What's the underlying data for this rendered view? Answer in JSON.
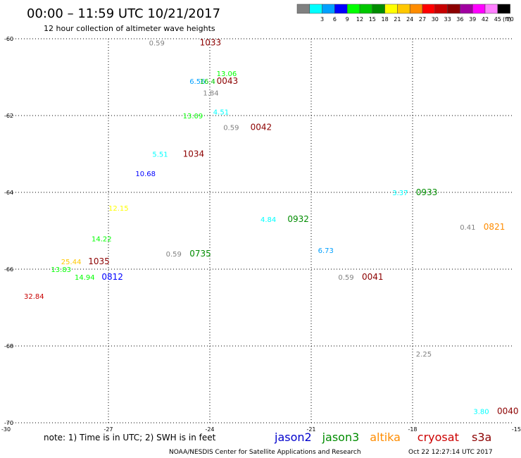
{
  "header": {
    "title": "00:00 – 11:59 UTC 10/21/2017",
    "subtitle": "12 hour collection of altimeter wave heights"
  },
  "legend": {
    "unit": "(ft)",
    "swatches": [
      {
        "color": "#808080",
        "label": ""
      },
      {
        "color": "#00ffff",
        "label": "3"
      },
      {
        "color": "#00a0ff",
        "label": "6"
      },
      {
        "color": "#0000ff",
        "label": "9"
      },
      {
        "color": "#00ff00",
        "label": "12"
      },
      {
        "color": "#00c800",
        "label": "15"
      },
      {
        "color": "#008c00",
        "label": "18"
      },
      {
        "color": "#ffff00",
        "label": "21"
      },
      {
        "color": "#ffc800",
        "label": "24"
      },
      {
        "color": "#ff8c00",
        "label": "27"
      },
      {
        "color": "#ff0000",
        "label": "30"
      },
      {
        "color": "#c80000",
        "label": "33"
      },
      {
        "color": "#8c0000",
        "label": "36"
      },
      {
        "color": "#a000a0",
        "label": "39"
      },
      {
        "color": "#ff00ff",
        "label": "42"
      },
      {
        "color": "#ff80ff",
        "label": "45"
      },
      {
        "color": "#000000",
        "label": "70"
      }
    ]
  },
  "axes": {
    "lon_ticks": [
      {
        "value": -30,
        "label": "-30"
      },
      {
        "value": -27,
        "label": "-27"
      },
      {
        "value": -24,
        "label": "-24"
      },
      {
        "value": -21,
        "label": "-21"
      },
      {
        "value": -18,
        "label": "-18"
      },
      {
        "value": -15,
        "label": "-15"
      }
    ],
    "lat_ticks": [
      {
        "value": -60,
        "label": "-60"
      },
      {
        "value": -62,
        "label": "-62"
      },
      {
        "value": -64,
        "label": "-64"
      },
      {
        "value": -66,
        "label": "-66"
      },
      {
        "value": -68,
        "label": "-68"
      },
      {
        "value": -70,
        "label": "-70"
      }
    ],
    "lon_range": [
      -30,
      -15
    ],
    "lat_range": [
      -60,
      -70
    ],
    "grid": "dotted"
  },
  "observations": [
    {
      "text": "0.59",
      "lon": -25.8,
      "lat": -60.1,
      "color": "#808080"
    },
    {
      "text": "1033",
      "lon": -24.3,
      "lat": -60.1,
      "color": "#8c0000",
      "time_label": true
    },
    {
      "text": "13.06",
      "lon": -23.8,
      "lat": -60.9,
      "color": "#00ff00"
    },
    {
      "text": "6.56",
      "lon": -24.6,
      "lat": -61.1,
      "color": "#00a0ff"
    },
    {
      "text": "16.4",
      "lon": -24.3,
      "lat": -61.1,
      "color": "#00c800"
    },
    {
      "text": "0043",
      "lon": -23.8,
      "lat": -61.1,
      "color": "#8c0000",
      "time_label": true
    },
    {
      "text": "1.84",
      "lon": -24.2,
      "lat": -61.4,
      "color": "#808080"
    },
    {
      "text": "4.51",
      "lon": -23.9,
      "lat": -61.9,
      "color": "#00ffff"
    },
    {
      "text": "13.09",
      "lon": -24.8,
      "lat": -62.0,
      "color": "#00ff00"
    },
    {
      "text": "0.59",
      "lon": -23.6,
      "lat": -62.3,
      "color": "#808080"
    },
    {
      "text": "0042",
      "lon": -22.8,
      "lat": -62.3,
      "color": "#8c0000",
      "time_label": true
    },
    {
      "text": "5.51",
      "lon": -25.7,
      "lat": -63.0,
      "color": "#00ffff"
    },
    {
      "text": "1034",
      "lon": -24.8,
      "lat": -63.0,
      "color": "#8c0000",
      "time_label": true
    },
    {
      "text": "10.68",
      "lon": -26.2,
      "lat": -63.5,
      "color": "#0000ff"
    },
    {
      "text": "3.37",
      "lon": -18.6,
      "lat": -64.0,
      "color": "#00ffff"
    },
    {
      "text": "0933",
      "lon": -17.9,
      "lat": -64.0,
      "color": "#008c00",
      "time_label": true
    },
    {
      "text": "12.15",
      "lon": -27.0,
      "lat": -64.4,
      "color": "#ffff00"
    },
    {
      "text": "4.84",
      "lon": -22.5,
      "lat": -64.7,
      "color": "#00ffff"
    },
    {
      "text": "0932",
      "lon": -21.7,
      "lat": -64.7,
      "color": "#008c00",
      "time_label": true
    },
    {
      "text": "0.41",
      "lon": -16.6,
      "lat": -64.9,
      "color": "#808080"
    },
    {
      "text": "0821",
      "lon": -15.9,
      "lat": -64.9,
      "color": "#ff8c00",
      "time_label": true
    },
    {
      "text": "14.22",
      "lon": -27.5,
      "lat": -65.2,
      "color": "#00ff00"
    },
    {
      "text": "6.73",
      "lon": -20.8,
      "lat": -65.5,
      "color": "#00a0ff"
    },
    {
      "text": "0.59",
      "lon": -25.3,
      "lat": -65.6,
      "color": "#808080"
    },
    {
      "text": "0735",
      "lon": -24.6,
      "lat": -65.6,
      "color": "#008c00",
      "time_label": true
    },
    {
      "text": "25.44",
      "lon": -28.4,
      "lat": -65.8,
      "color": "#ffc800"
    },
    {
      "text": "1035",
      "lon": -27.6,
      "lat": -65.8,
      "color": "#8c0000",
      "time_label": true
    },
    {
      "text": "13.83",
      "lon": -28.7,
      "lat": -66.0,
      "color": "#00ff00"
    },
    {
      "text": "14.94",
      "lon": -28.0,
      "lat": -66.2,
      "color": "#00ff00"
    },
    {
      "text": "0812",
      "lon": -27.2,
      "lat": -66.2,
      "color": "#0000ff",
      "time_label": true
    },
    {
      "text": "0.59",
      "lon": -20.2,
      "lat": -66.2,
      "color": "#808080"
    },
    {
      "text": "0041",
      "lon": -19.5,
      "lat": -66.2,
      "color": "#8c0000",
      "time_label": true
    },
    {
      "text": "32.84",
      "lon": -29.5,
      "lat": -66.7,
      "color": "#c80000"
    },
    {
      "text": "2.25",
      "lon": -17.9,
      "lat": -68.2,
      "color": "#808080"
    },
    {
      "text": "3.80",
      "lon": -16.2,
      "lat": -69.7,
      "color": "#00ffff"
    },
    {
      "text": "0040",
      "lon": -15.5,
      "lat": -69.7,
      "color": "#8c0000",
      "time_label": true
    }
  ],
  "footer": {
    "note": "note:  1) Time is in UTC; 2) SWH is in feet",
    "satellites": [
      {
        "name": "jason2",
        "color": "#0000cc"
      },
      {
        "name": "jason3",
        "color": "#008c00"
      },
      {
        "name": "altika",
        "color": "#ff8c00"
      },
      {
        "name": "cryosat",
        "color": "#cc0000"
      },
      {
        "name": "s3a",
        "color": "#8c0000"
      }
    ],
    "credit": "NOAA/NESDIS Center for Satellite Applications and Research",
    "timestamp": "Oct 22 12:27:14 UTC 2017"
  }
}
